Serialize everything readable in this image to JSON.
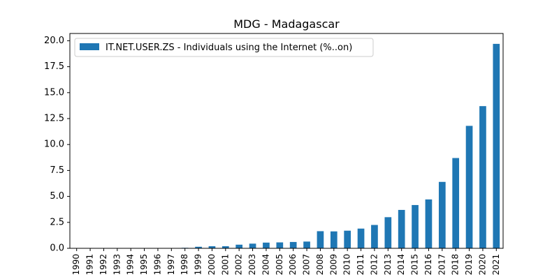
{
  "chart_data": {
    "type": "bar",
    "title": "MDG - Madagascar",
    "xlabel": "",
    "ylabel": "",
    "ylim": [
      0,
      20.7
    ],
    "yticks": [
      0.0,
      2.5,
      5.0,
      7.5,
      10.0,
      12.5,
      15.0,
      17.5,
      20.0
    ],
    "grid": false,
    "legend_position": "upper-left",
    "categories": [
      "1990",
      "1991",
      "1992",
      "1993",
      "1994",
      "1995",
      "1996",
      "1997",
      "1998",
      "1999",
      "2000",
      "2001",
      "2002",
      "2003",
      "2004",
      "2005",
      "2006",
      "2007",
      "2008",
      "2009",
      "2010",
      "2011",
      "2012",
      "2013",
      "2014",
      "2015",
      "2016",
      "2017",
      "2018",
      "2019",
      "2020",
      "2021"
    ],
    "series": [
      {
        "name": "IT.NET.USER.ZS - Individuals using the Internet (%..on)",
        "color": "#1f77b4",
        "values": [
          0,
          0,
          0,
          0,
          0,
          0,
          0.005,
          0.02,
          0.05,
          0.15,
          0.2,
          0.2,
          0.35,
          0.45,
          0.55,
          0.57,
          0.61,
          0.65,
          1.65,
          1.63,
          1.7,
          1.9,
          2.25,
          3.0,
          3.7,
          4.17,
          4.71,
          6.4,
          8.7,
          11.8,
          13.7,
          19.7
        ]
      }
    ]
  }
}
